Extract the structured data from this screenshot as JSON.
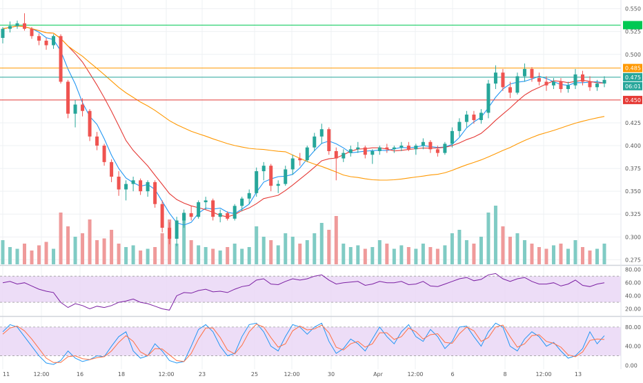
{
  "chart_data": [
    {
      "type": "candlestick",
      "title": "",
      "price_axis": {
        "ticks": [
          "0.550",
          "0.525",
          "0.500",
          "0.475",
          "0.450",
          "0.425",
          "0.400",
          "0.375",
          "0.350",
          "0.325",
          "0.300",
          "0.275"
        ],
        "ylim": [
          0.27,
          0.555
        ]
      },
      "time_axis": {
        "labels": [
          "11",
          "12:00",
          "16",
          "18",
          "12:00",
          "23",
          "25",
          "12:00",
          "30",
          "Apr",
          "12:00",
          "6",
          "8",
          "12:00",
          "13"
        ]
      },
      "price_ohlc_approx": [
        [
          0.518,
          0.53,
          0.512,
          0.528
        ],
        [
          0.528,
          0.536,
          0.524,
          0.531
        ],
        [
          0.531,
          0.537,
          0.528,
          0.534
        ],
        [
          0.534,
          0.545,
          0.526,
          0.528
        ],
        [
          0.528,
          0.53,
          0.517,
          0.52
        ],
        [
          0.52,
          0.523,
          0.51,
          0.515
        ],
        [
          0.515,
          0.518,
          0.505,
          0.51
        ],
        [
          0.51,
          0.522,
          0.506,
          0.52
        ],
        [
          0.52,
          0.522,
          0.468,
          0.47
        ],
        [
          0.47,
          0.472,
          0.43,
          0.435
        ],
        [
          0.435,
          0.45,
          0.42,
          0.445
        ],
        [
          0.445,
          0.452,
          0.432,
          0.438
        ],
        [
          0.438,
          0.44,
          0.405,
          0.41
        ],
        [
          0.41,
          0.415,
          0.395,
          0.4
        ],
        [
          0.4,
          0.402,
          0.378,
          0.382
        ],
        [
          0.382,
          0.385,
          0.36,
          0.366
        ],
        [
          0.366,
          0.372,
          0.345,
          0.352
        ],
        [
          0.352,
          0.362,
          0.34,
          0.358
        ],
        [
          0.358,
          0.366,
          0.35,
          0.362
        ],
        [
          0.362,
          0.364,
          0.346,
          0.35
        ],
        [
          0.35,
          0.362,
          0.344,
          0.36
        ],
        [
          0.36,
          0.362,
          0.332,
          0.336
        ],
        [
          0.336,
          0.34,
          0.305,
          0.31
        ],
        [
          0.31,
          0.316,
          0.292,
          0.298
        ],
        [
          0.298,
          0.322,
          0.29,
          0.318
        ],
        [
          0.318,
          0.33,
          0.31,
          0.326
        ],
        [
          0.326,
          0.334,
          0.318,
          0.322
        ],
        [
          0.322,
          0.34,
          0.32,
          0.338
        ],
        [
          0.338,
          0.344,
          0.33,
          0.34
        ],
        [
          0.34,
          0.342,
          0.318,
          0.322
        ],
        [
          0.322,
          0.33,
          0.316,
          0.326
        ],
        [
          0.326,
          0.328,
          0.318,
          0.32
        ],
        [
          0.32,
          0.336,
          0.318,
          0.334
        ],
        [
          0.334,
          0.344,
          0.328,
          0.342
        ],
        [
          0.342,
          0.352,
          0.336,
          0.348
        ],
        [
          0.348,
          0.376,
          0.344,
          0.372
        ],
        [
          0.372,
          0.382,
          0.362,
          0.378
        ],
        [
          0.378,
          0.38,
          0.35,
          0.356
        ],
        [
          0.356,
          0.362,
          0.348,
          0.358
        ],
        [
          0.358,
          0.378,
          0.356,
          0.374
        ],
        [
          0.374,
          0.39,
          0.368,
          0.386
        ],
        [
          0.386,
          0.392,
          0.378,
          0.384
        ],
        [
          0.384,
          0.4,
          0.382,
          0.398
        ],
        [
          0.398,
          0.414,
          0.394,
          0.41
        ],
        [
          0.41,
          0.424,
          0.402,
          0.418
        ],
        [
          0.418,
          0.42,
          0.39,
          0.394
        ],
        [
          0.394,
          0.398,
          0.362,
          0.386
        ],
        [
          0.386,
          0.396,
          0.382,
          0.392
        ],
        [
          0.392,
          0.4,
          0.388,
          0.396
        ],
        [
          0.396,
          0.404,
          0.392,
          0.398
        ],
        [
          0.398,
          0.4,
          0.386,
          0.39
        ],
        [
          0.39,
          0.396,
          0.38,
          0.394
        ],
        [
          0.394,
          0.4,
          0.39,
          0.398
        ],
        [
          0.398,
          0.402,
          0.392,
          0.396
        ],
        [
          0.396,
          0.4,
          0.392,
          0.398
        ],
        [
          0.398,
          0.404,
          0.394,
          0.4
        ],
        [
          0.4,
          0.404,
          0.394,
          0.396
        ],
        [
          0.396,
          0.402,
          0.39,
          0.4
        ],
        [
          0.4,
          0.408,
          0.396,
          0.404
        ],
        [
          0.404,
          0.406,
          0.392,
          0.396
        ],
        [
          0.396,
          0.4,
          0.388,
          0.392
        ],
        [
          0.392,
          0.404,
          0.39,
          0.402
        ],
        [
          0.402,
          0.42,
          0.398,
          0.416
        ],
        [
          0.416,
          0.43,
          0.41,
          0.426
        ],
        [
          0.426,
          0.438,
          0.42,
          0.434
        ],
        [
          0.434,
          0.438,
          0.424,
          0.428
        ],
        [
          0.428,
          0.44,
          0.424,
          0.436
        ],
        [
          0.436,
          0.472,
          0.43,
          0.468
        ],
        [
          0.468,
          0.488,
          0.462,
          0.48
        ],
        [
          0.48,
          0.484,
          0.46,
          0.464
        ],
        [
          0.464,
          0.47,
          0.452,
          0.458
        ],
        [
          0.458,
          0.48,
          0.456,
          0.476
        ],
        [
          0.476,
          0.49,
          0.47,
          0.484
        ],
        [
          0.484,
          0.486,
          0.47,
          0.474
        ],
        [
          0.474,
          0.48,
          0.466,
          0.47
        ],
        [
          0.47,
          0.476,
          0.46,
          0.466
        ],
        [
          0.466,
          0.474,
          0.462,
          0.47
        ],
        [
          0.47,
          0.474,
          0.458,
          0.462
        ],
        [
          0.462,
          0.47,
          0.458,
          0.466
        ],
        [
          0.466,
          0.484,
          0.462,
          0.478
        ],
        [
          0.478,
          0.482,
          0.466,
          0.47
        ],
        [
          0.47,
          0.476,
          0.46,
          0.464
        ],
        [
          0.464,
          0.472,
          0.46,
          0.468
        ],
        [
          0.468,
          0.476,
          0.464,
          0.472
        ]
      ],
      "volume_approx": [
        14,
        10,
        9,
        12,
        8,
        11,
        13,
        9,
        30,
        22,
        16,
        18,
        26,
        14,
        15,
        20,
        12,
        10,
        11,
        8,
        9,
        10,
        18,
        26,
        12,
        30,
        14,
        11,
        10,
        9,
        8,
        10,
        12,
        9,
        10,
        22,
        16,
        14,
        11,
        18,
        16,
        12,
        14,
        18,
        24,
        20,
        28,
        12,
        10,
        11,
        9,
        10,
        14,
        12,
        9,
        11,
        10,
        9,
        12,
        10,
        9,
        11,
        18,
        20,
        14,
        12,
        16,
        30,
        34,
        22,
        16,
        18,
        14,
        12,
        10,
        9,
        11,
        12,
        9,
        14,
        10,
        8,
        9,
        12
      ],
      "moving_averages": [
        {
          "color": "#2196f3",
          "role": "fast"
        },
        {
          "color": "#e53935",
          "role": "medium"
        },
        {
          "color": "#ff9800",
          "role": "slow"
        }
      ],
      "horizontal_lines": [
        {
          "value": 0.532,
          "color": "#00c853",
          "label": ""
        },
        {
          "value": 0.485,
          "color": "#ff9800",
          "label": "0.485"
        },
        {
          "value": 0.475,
          "color": "#26a69a",
          "label": "0.475"
        },
        {
          "value": 0.45,
          "color": "#e53935",
          "label": "0.450"
        }
      ],
      "price_labels": [
        {
          "text": "0.475",
          "sub": "06:01",
          "color": "#26a69a"
        },
        {
          "text": "0.485",
          "color": "#ff9800"
        },
        {
          "text": "0.450",
          "color": "#e53935"
        }
      ],
      "colors": {
        "up": "#26a69a",
        "down": "#ef5350",
        "volume_up": "#80cbc4",
        "volume_down": "#ef9a9a"
      }
    },
    {
      "type": "line",
      "indicator": "RSI",
      "ticks": [
        "80.00",
        "60.00",
        "40.00",
        "20.00"
      ],
      "ylim": [
        10,
        85
      ],
      "band": [
        30,
        70
      ],
      "line_color": "#7b1fa2",
      "band_color": "#e8d5f5",
      "values": [
        60,
        62,
        58,
        60,
        55,
        50,
        47,
        45,
        30,
        22,
        28,
        25,
        20,
        24,
        22,
        25,
        30,
        32,
        35,
        30,
        28,
        24,
        20,
        18,
        40,
        45,
        44,
        48,
        50,
        46,
        47,
        45,
        50,
        54,
        56,
        64,
        66,
        58,
        57,
        62,
        66,
        64,
        66,
        70,
        72,
        64,
        58,
        60,
        61,
        62,
        56,
        58,
        62,
        60,
        60,
        62,
        57,
        58,
        62,
        55,
        54,
        58,
        62,
        66,
        68,
        63,
        65,
        72,
        74,
        66,
        62,
        66,
        68,
        62,
        58,
        58,
        60,
        55,
        58,
        64,
        56,
        54,
        58,
        60
      ]
    },
    {
      "type": "line",
      "indicator": "Stochastic",
      "ticks": [
        "80.00",
        "40.00",
        "0.00"
      ],
      "ylim": [
        -8,
        100
      ],
      "band": [
        20,
        80
      ],
      "line_colors": [
        "#2196f3",
        "#ff7043"
      ],
      "band_color": "#e8d5f5",
      "k_values": [
        70,
        85,
        80,
        60,
        40,
        20,
        5,
        2,
        10,
        30,
        15,
        8,
        12,
        20,
        18,
        40,
        60,
        70,
        30,
        15,
        20,
        45,
        30,
        10,
        5,
        8,
        40,
        75,
        85,
        70,
        40,
        20,
        25,
        60,
        85,
        88,
        70,
        40,
        30,
        60,
        85,
        80,
        65,
        80,
        88,
        50,
        25,
        35,
        55,
        45,
        30,
        55,
        80,
        60,
        45,
        70,
        85,
        60,
        50,
        75,
        60,
        35,
        50,
        80,
        82,
        60,
        40,
        70,
        88,
        80,
        40,
        30,
        55,
        70,
        60,
        40,
        48,
        30,
        15,
        20,
        35,
        70,
        45,
        62
      ],
      "d_values": [
        65,
        78,
        82,
        72,
        55,
        35,
        15,
        6,
        6,
        18,
        20,
        14,
        12,
        16,
        18,
        30,
        48,
        62,
        50,
        28,
        20,
        35,
        34,
        22,
        10,
        8,
        25,
        55,
        78,
        78,
        58,
        32,
        24,
        42,
        70,
        86,
        80,
        58,
        38,
        45,
        72,
        82,
        74,
        76,
        84,
        68,
        38,
        32,
        45,
        50,
        38,
        45,
        68,
        68,
        54,
        60,
        78,
        70,
        55,
        64,
        66,
        48,
        46,
        66,
        80,
        72,
        50,
        58,
        80,
        84,
        60,
        38,
        45,
        62,
        64,
        50,
        46,
        38,
        22,
        18,
        28,
        52,
        55,
        54
      ]
    }
  ]
}
